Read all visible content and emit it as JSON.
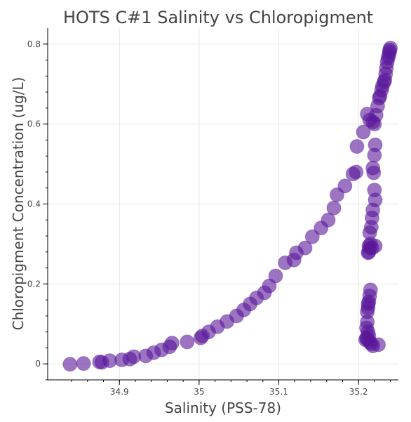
{
  "chart_data": {
    "type": "scatter",
    "title": "HOTS C#1 Salinity vs Chloropigment",
    "xlabel": "Salinity (PSS-78)",
    "ylabel": "Chloropigment Concentration (ug/L)",
    "xlim": [
      34.81,
      35.25
    ],
    "ylim": [
      -0.04,
      0.84
    ],
    "xticks": [
      34.9,
      35,
      35.1,
      35.2
    ],
    "xtick_labels": [
      "34.9",
      "35",
      "35.1",
      "35.2"
    ],
    "yticks": [
      0,
      0.2,
      0.4,
      0.6,
      0.8
    ],
    "ytick_labels": [
      "0",
      "0.2",
      "0.4",
      "0.6",
      "0.8"
    ],
    "grid": true,
    "marker_color": "#5a189a",
    "marker_opacity": 0.6,
    "series": [
      {
        "x": [
          34.838,
          34.855,
          34.875,
          34.878,
          34.888,
          34.903,
          34.913,
          34.918,
          34.933,
          34.943,
          34.953,
          34.963,
          34.966,
          34.985,
          35.002,
          35.004,
          35.012,
          35.023,
          35.035,
          35.047,
          35.056,
          35.064,
          35.072,
          35.082,
          35.088,
          35.096,
          35.108,
          35.119,
          35.122,
          35.133,
          35.142,
          35.153,
          35.162,
          35.169,
          35.173,
          35.183,
          35.193,
          35.197,
          35.198,
          35.206,
          35.211,
          35.214,
          35.218,
          35.22,
          35.222,
          35.224,
          35.226,
          35.227,
          35.229,
          35.23,
          35.232,
          35.233,
          35.234,
          35.235,
          35.236,
          35.237,
          35.238,
          35.239,
          35.239,
          35.24,
          35.221,
          35.22,
          35.218,
          35.219,
          35.22,
          35.221,
          35.218,
          35.217,
          35.216,
          35.214,
          35.215,
          35.214,
          35.213,
          35.212,
          35.213,
          35.217,
          35.221,
          35.215,
          35.214,
          35.213,
          35.212,
          35.212,
          35.211,
          35.211,
          35.21,
          35.212,
          35.213,
          35.211,
          35.214,
          35.216,
          35.218,
          35.225,
          35.209,
          35.21
        ],
        "y": [
          -0.001,
          0.001,
          0.005,
          0.004,
          0.008,
          0.01,
          0.012,
          0.018,
          0.02,
          0.028,
          0.035,
          0.043,
          0.052,
          0.055,
          0.065,
          0.07,
          0.08,
          0.093,
          0.106,
          0.12,
          0.135,
          0.15,
          0.165,
          0.178,
          0.195,
          0.22,
          0.253,
          0.26,
          0.278,
          0.29,
          0.318,
          0.34,
          0.36,
          0.39,
          0.423,
          0.445,
          0.475,
          0.48,
          0.544,
          0.58,
          0.625,
          0.61,
          0.605,
          0.6,
          0.622,
          0.645,
          0.665,
          0.67,
          0.685,
          0.695,
          0.705,
          0.71,
          0.725,
          0.74,
          0.755,
          0.765,
          0.772,
          0.78,
          0.785,
          0.79,
          0.548,
          0.522,
          0.49,
          0.478,
          0.435,
          0.41,
          0.385,
          0.365,
          0.342,
          0.328,
          0.3,
          0.29,
          0.295,
          0.278,
          0.28,
          0.29,
          0.295,
          0.185,
          0.17,
          0.155,
          0.15,
          0.14,
          0.13,
          0.105,
          0.09,
          0.08,
          0.07,
          0.062,
          0.055,
          0.05,
          0.045,
          0.048,
          0.06,
          0.065
        ]
      }
    ]
  }
}
